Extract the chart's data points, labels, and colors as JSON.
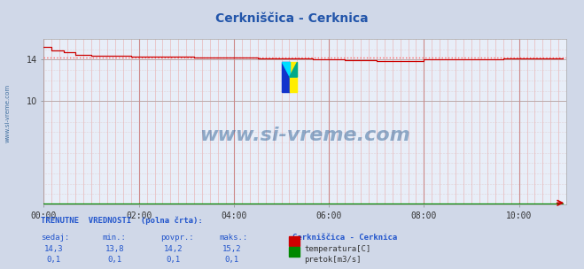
{
  "title": "Cerkniščica - Cerknica",
  "title_color": "#2255aa",
  "bg_color": "#d0d8e8",
  "plot_bg_color": "#e8eef8",
  "grid_color_minor_v": "#e8aaaa",
  "grid_color_major_v": "#cc8888",
  "grid_color_h": "#ddbbbb",
  "x_ticks_labels": [
    "00:00",
    "02:00",
    "04:00",
    "06:00",
    "08:00",
    "10:00"
  ],
  "x_ticks_positions": [
    0,
    24,
    48,
    72,
    96,
    120
  ],
  "x_total_points": 132,
  "ylim": [
    0,
    16
  ],
  "xlim": [
    0,
    132
  ],
  "y_ticks": [
    10,
    14
  ],
  "y_tick_labels": [
    "10",
    "14"
  ],
  "temp_color": "#cc0000",
  "flow_color": "#008800",
  "avg_line_color": "#ff6666",
  "avg_temp": 14.2,
  "watermark_text": "www.si-vreme.com",
  "watermark_color": "#336699",
  "watermark_alpha": 0.5,
  "sidebar_text": "www.si-vreme.com",
  "sidebar_color": "#336699",
  "footer_header": "TRENUTNE  VREDNOSTI  (polna črta):",
  "footer_cols": [
    "sedaj:",
    "min.:",
    "povpr.:",
    "maks.:"
  ],
  "footer_station": "Cerkniščica - Cerknica",
  "footer_temp_vals": [
    "14,3",
    "13,8",
    "14,2",
    "15,2"
  ],
  "footer_flow_vals": [
    "0,1",
    "0,1",
    "0,1",
    "0,1"
  ],
  "footer_temp_label": "temperatura[C]",
  "footer_flow_label": "pretok[m3/s]",
  "footer_color": "#2255cc"
}
